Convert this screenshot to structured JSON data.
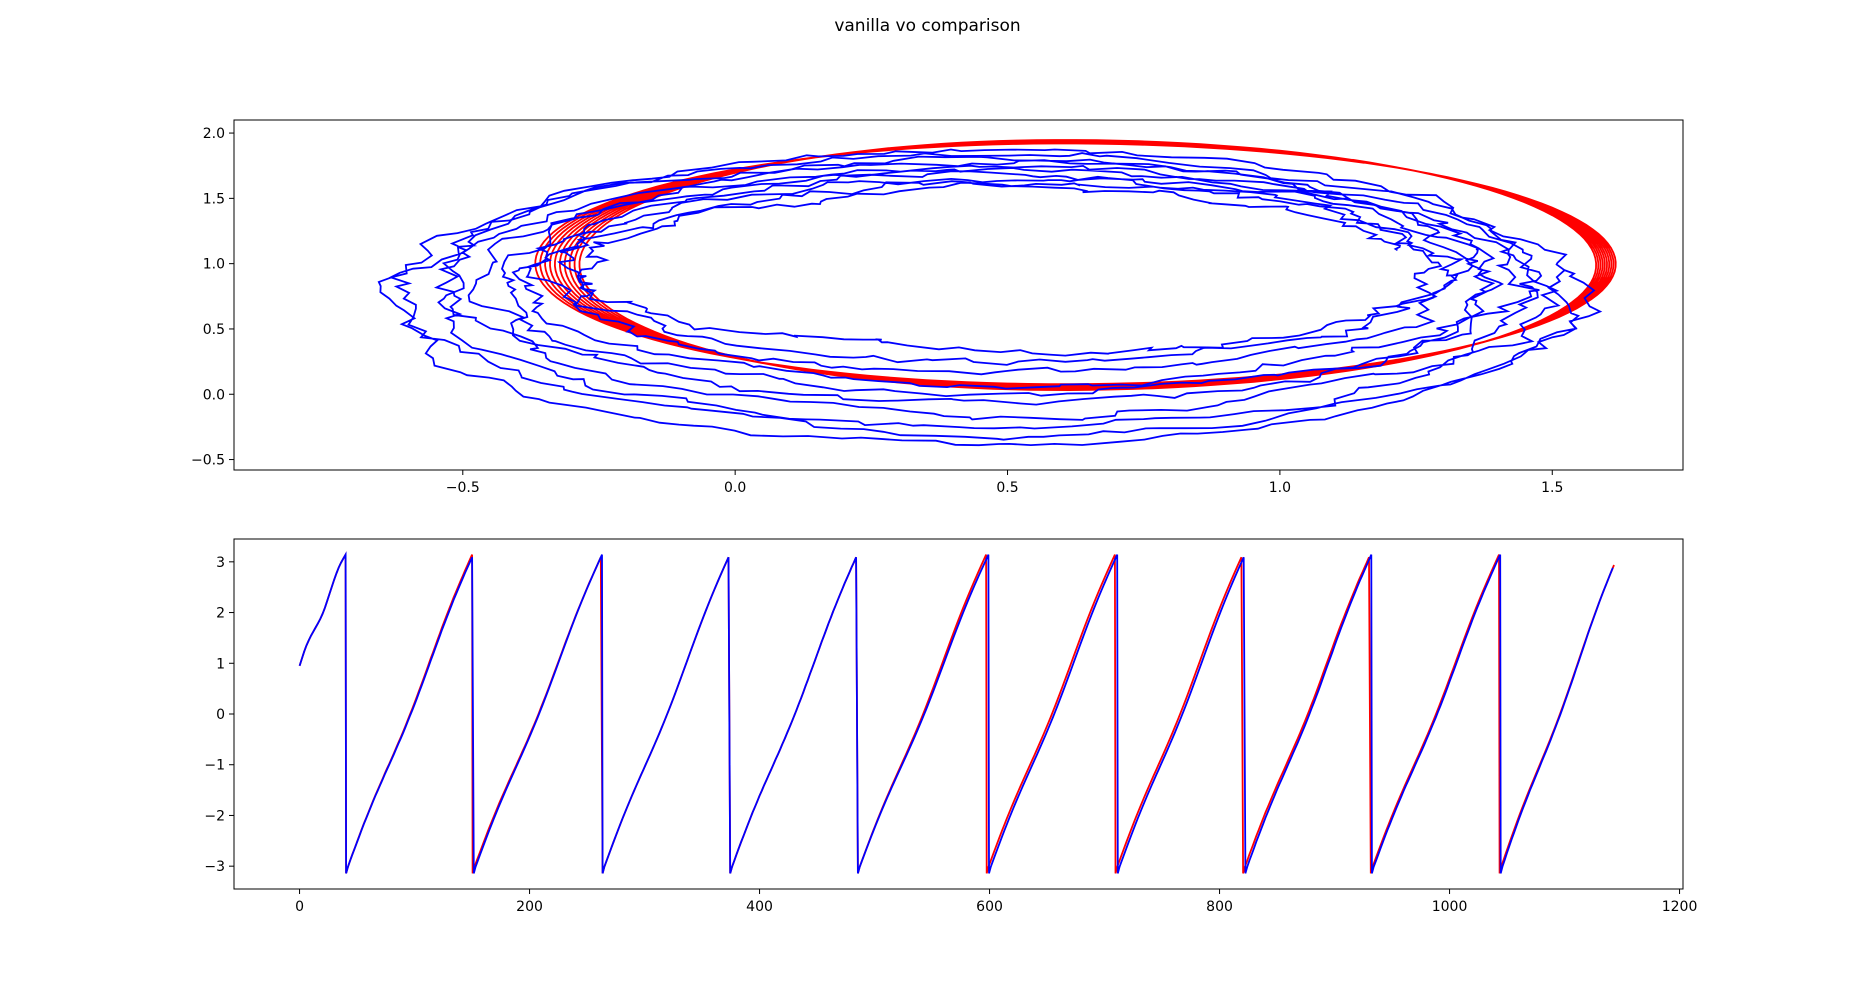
{
  "figure": {
    "title": "vanilla vo comparison"
  },
  "colors": {
    "reference": "#ff0000",
    "estimate": "#0000ff"
  },
  "chart_data": [
    {
      "type": "line",
      "title": "",
      "xlabel": "",
      "ylabel": "",
      "xlim": [
        -0.92,
        1.74
      ],
      "ylim": [
        -0.58,
        2.1
      ],
      "grid": false,
      "xticks": [
        "−0.5",
        "0.0",
        "0.5",
        "1.0",
        "1.5"
      ],
      "xtick_values": [
        -0.5,
        0.0,
        0.5,
        1.0,
        1.5
      ],
      "yticks": [
        "−0.5",
        "0.0",
        "0.5",
        "1.0",
        "1.5",
        "2.0"
      ],
      "ytick_values": [
        -0.5,
        0.0,
        0.5,
        1.0,
        1.5,
        2.0
      ],
      "trajectories": {
        "reference": {
          "color": "red",
          "loops": 10,
          "start": [
            1.24,
            1.89
          ],
          "first_loop": {
            "center": [
              0.6,
              1.0
            ],
            "x_radius": [
              1.02,
              0.97
            ],
            "y_radius": 0.92
          },
          "last_loop": {
            "center": [
              0.6,
              0.99
            ],
            "x_radius": [
              0.98,
              0.88
            ],
            "y_radius": 0.96
          }
        },
        "estimate": {
          "color": "blue",
          "loops": 10,
          "start": [
            1.24,
            1.09
          ],
          "first_loop": {
            "center": [
              0.55,
              0.98
            ],
            "x_radius": [
              0.69,
              0.8
            ],
            "y_radius": 0.6
          },
          "last_loop": {
            "center": [
              0.45,
              0.74
            ],
            "x_radius": [
              1.12,
              1.1
            ],
            "y_radius": 1.15
          }
        }
      }
    },
    {
      "type": "line",
      "title": "",
      "xlabel": "",
      "ylabel": "",
      "xlim": [
        -57,
        1203
      ],
      "ylim": [
        -3.45,
        3.45
      ],
      "grid": false,
      "xticks": [
        "0",
        "200",
        "400",
        "600",
        "800",
        "1000",
        "1200"
      ],
      "xtick_values": [
        0,
        200,
        400,
        600,
        800,
        1000,
        1200
      ],
      "yticks": [
        "−3",
        "−2",
        "−1",
        "0",
        "1",
        "2",
        "3"
      ],
      "ytick_values": [
        -3,
        -2,
        -1,
        0,
        1,
        2,
        3
      ],
      "series": [
        {
          "color": "red",
          "wrap_x": [
            40,
            150,
            263,
            374,
            485,
            597,
            709,
            820,
            931,
            1043
          ],
          "start_y": 0.95,
          "end_x": 1143,
          "end_y": 2.68
        },
        {
          "color": "blue",
          "wrap_x": [
            40,
            151,
            263,
            374,
            485,
            599,
            711,
            822,
            932,
            1044
          ],
          "start_y": 0.95,
          "end_x": 1143,
          "end_y": 2.62
        }
      ],
      "wrap_range": [
        -3.14159,
        3.14159
      ]
    }
  ]
}
